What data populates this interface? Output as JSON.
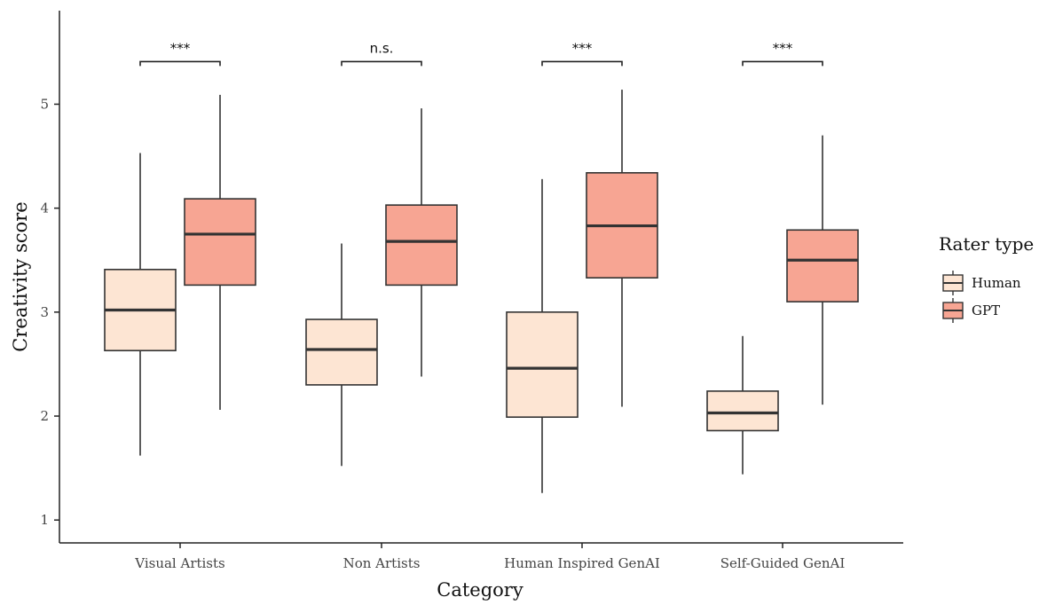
{
  "chart_data": {
    "type": "boxplot",
    "xlabel": "Category",
    "ylabel": "Creativity score",
    "ylim": [
      0.78,
      5.9
    ],
    "yticks": [
      1,
      2,
      3,
      4,
      5
    ],
    "categories": [
      "Visual Artists",
      "Non Artists",
      "Human Inspired GenAI",
      "Self-Guided GenAI"
    ],
    "legend": {
      "title": "Rater type",
      "position": "right"
    },
    "grid": false,
    "series": [
      {
        "name": "Human",
        "color": "#FDE5D3",
        "boxes": [
          {
            "whisker_low": 1.62,
            "q1": 2.63,
            "median": 3.02,
            "q3": 3.41,
            "whisker_high": 4.53
          },
          {
            "whisker_low": 1.52,
            "q1": 2.3,
            "median": 2.64,
            "q3": 2.93,
            "whisker_high": 3.66
          },
          {
            "whisker_low": 1.26,
            "q1": 1.99,
            "median": 2.46,
            "q3": 3.0,
            "whisker_high": 4.28
          },
          {
            "whisker_low": 1.44,
            "q1": 1.86,
            "median": 2.03,
            "q3": 2.24,
            "whisker_high": 2.77
          }
        ]
      },
      {
        "name": "GPT",
        "color": "#F7A593",
        "boxes": [
          {
            "whisker_low": 2.06,
            "q1": 3.26,
            "median": 3.75,
            "q3": 4.09,
            "whisker_high": 5.09
          },
          {
            "whisker_low": 2.38,
            "q1": 3.26,
            "median": 3.68,
            "q3": 4.03,
            "whisker_high": 4.96
          },
          {
            "whisker_low": 2.09,
            "q1": 3.33,
            "median": 3.83,
            "q3": 4.34,
            "whisker_high": 5.14
          },
          {
            "whisker_low": 2.11,
            "q1": 3.1,
            "median": 3.5,
            "q3": 3.79,
            "whisker_high": 4.7
          }
        ]
      }
    ],
    "significance": [
      "***",
      "n.s.",
      "***",
      "***"
    ],
    "significance_y": 5.41
  }
}
